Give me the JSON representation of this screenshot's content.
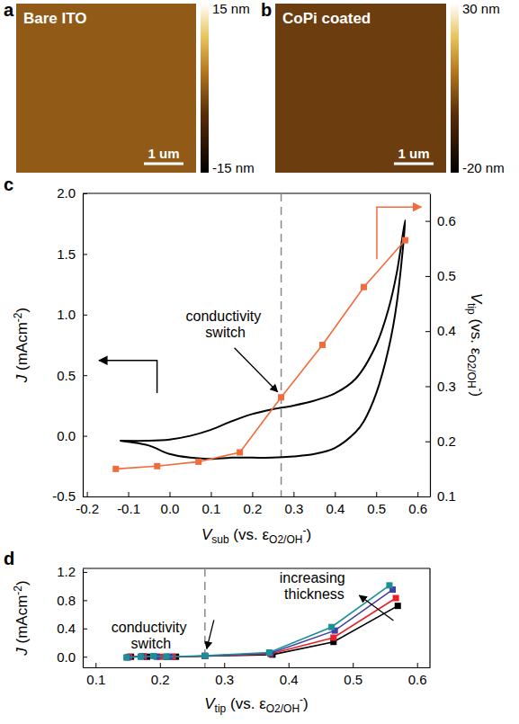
{
  "chart_data": [
    {
      "type": "image",
      "panel": "a",
      "title": "Bare ITO",
      "scale_bar": "1 um",
      "colorbar": {
        "range": [
          -15,
          15
        ],
        "ticks": [
          {
            "value": 15,
            "label": "15 nm"
          },
          {
            "value": -15,
            "label": "-15 nm"
          }
        ]
      }
    },
    {
      "type": "image",
      "panel": "b",
      "title": "CoPi coated",
      "scale_bar": "1 um",
      "colorbar": {
        "range": [
          -20,
          30
        ],
        "ticks": [
          {
            "value": 30,
            "label": "30 nm"
          },
          {
            "value": -20,
            "label": "-20 nm"
          }
        ]
      }
    },
    {
      "type": "line",
      "panel": "c",
      "xlabel": [
        "V",
        {
          "sub": "sub"
        },
        " (vs. ε",
        {
          "sub": "O2/OH"
        },
        {
          "sup": "-"
        },
        ")"
      ],
      "ylabel": [
        "J",
        " (mAcm",
        {
          "sup": "-2"
        },
        ")"
      ],
      "y2label": [
        "V",
        {
          "sub": "tip"
        },
        " (vs. ε",
        {
          "sub": "O2/OH"
        },
        {
          "sup": "-"
        },
        ")"
      ],
      "xlim": [
        -0.21,
        0.63
      ],
      "xticks": [
        -0.2,
        -0.1,
        {
          "value": 0,
          "label": "0.0"
        },
        0.1,
        0.2,
        0.3,
        0.4,
        0.5,
        0.6
      ],
      "ylim": [
        -0.5,
        2.0
      ],
      "yticks": [
        -0.5,
        {
          "value": 0,
          "label": "0.0"
        },
        0.5,
        {
          "value": 1,
          "label": "1.0"
        },
        1.5,
        {
          "value": 2,
          "label": "2.0"
        }
      ],
      "y2lim": [
        0.1,
        0.65
      ],
      "y2ticks": [
        0.1,
        0.2,
        0.3,
        0.4,
        0.5,
        0.6
      ],
      "vline": 0.27,
      "annotation": "conductivity switch",
      "series": [
        {
          "color": "#000000",
          "marker": "none",
          "line_style": "solid",
          "x": [
            -0.12,
            -0.05,
            0.0,
            0.05,
            0.1,
            0.15,
            0.2,
            0.25,
            0.3,
            0.35,
            0.4,
            0.45,
            0.5,
            0.53,
            0.55,
            0.57,
            0.55,
            0.53,
            0.5,
            0.47,
            0.45,
            0.4,
            0.35,
            0.3,
            0.25,
            0.2,
            0.15,
            0.1,
            0.05,
            0.0,
            -0.05,
            -0.1,
            -0.12
          ],
          "values": [
            -0.04,
            -0.04,
            -0.03,
            0.0,
            0.05,
            0.12,
            0.18,
            0.22,
            0.25,
            0.29,
            0.35,
            0.47,
            0.75,
            1.05,
            1.35,
            1.78,
            1.1,
            0.72,
            0.35,
            0.12,
            0.03,
            -0.1,
            -0.15,
            -0.17,
            -0.18,
            -0.18,
            -0.18,
            -0.19,
            -0.18,
            -0.15,
            -0.08,
            -0.05,
            -0.04
          ]
        },
        {
          "color": "#f26b3a",
          "marker": "square",
          "line_style": "solid",
          "axis": "y2",
          "x": [
            -0.13,
            -0.03,
            0.07,
            0.17,
            0.27,
            0.37,
            0.47,
            0.57
          ],
          "values": [
            0.15,
            0.155,
            0.163,
            0.18,
            0.28,
            0.375,
            0.48,
            0.565
          ]
        }
      ]
    },
    {
      "type": "line",
      "panel": "d",
      "xlabel": [
        "V",
        {
          "sub": "tip"
        },
        " (vs. ε",
        {
          "sub": "O2/OH"
        },
        {
          "sup": "-"
        },
        ")"
      ],
      "ylabel": [
        "J",
        " (mAcm",
        {
          "sup": "-2"
        },
        ")"
      ],
      "xlim": [
        0.08,
        0.62
      ],
      "xticks": [
        0.1,
        0.2,
        0.3,
        0.4,
        0.5,
        0.6
      ],
      "ylim": [
        -0.15,
        1.25
      ],
      "yticks": [
        {
          "value": 0,
          "label": "0.0"
        },
        0.4,
        0.8,
        1.2
      ],
      "vline": 0.27,
      "annotations": [
        "conductivity switch",
        "increasing thickness"
      ],
      "series": [
        {
          "color": "#000000",
          "marker": "square",
          "line_style": "solid",
          "x": [
            0.155,
            0.18,
            0.21,
            0.225,
            0.27,
            0.375,
            0.47,
            0.57
          ],
          "values": [
            0,
            0,
            0,
            0,
            0.01,
            0.03,
            0.21,
            0.72
          ]
        },
        {
          "color": "#e8202a",
          "marker": "square",
          "line_style": "solid",
          "x": [
            0.152,
            0.175,
            0.2,
            0.22,
            0.27,
            0.372,
            0.47,
            0.567
          ],
          "values": [
            0,
            0.005,
            0,
            0,
            0.01,
            0.04,
            0.27,
            0.83
          ]
        },
        {
          "color": "#3f3fa8",
          "marker": "square",
          "line_style": "solid",
          "x": [
            0.15,
            0.172,
            0.195,
            0.215,
            0.27,
            0.372,
            0.472,
            0.562
          ],
          "values": [
            -0.01,
            0.005,
            0,
            0,
            0.01,
            0.05,
            0.37,
            0.95
          ]
        },
        {
          "color": "#1a8f96",
          "marker": "square",
          "line_style": "solid",
          "x": [
            0.148,
            0.17,
            0.19,
            0.21,
            0.27,
            0.37,
            0.467,
            0.557
          ],
          "values": [
            -0.01,
            0,
            0.01,
            0,
            0.015,
            0.06,
            0.42,
            1.01
          ]
        }
      ]
    }
  ]
}
